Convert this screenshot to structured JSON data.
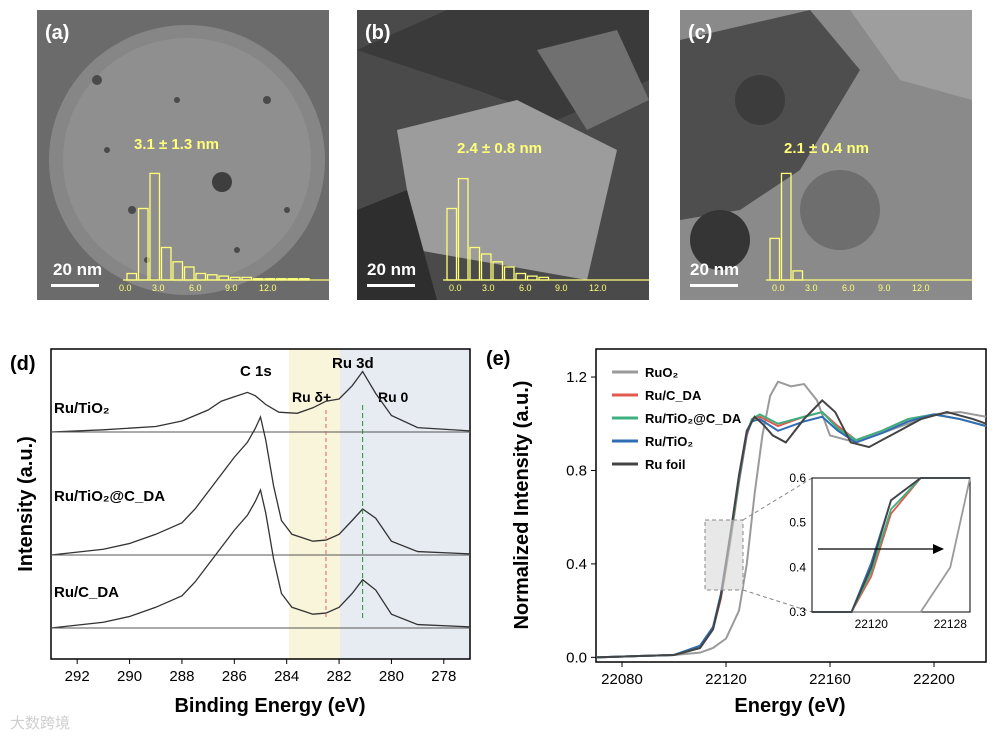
{
  "tem_panels": [
    {
      "label": "(a)",
      "measurement": "3.1 ± 1.3 nm",
      "scale": "20 nm",
      "hist_ticks": [
        "0.0",
        "3.0",
        "6.0",
        "9.0",
        "12.0"
      ],
      "hist_bins": [
        1,
        2,
        3,
        4,
        5,
        6,
        7,
        8,
        9,
        10,
        11,
        12,
        13,
        14,
        15,
        16,
        17,
        18,
        19,
        20
      ],
      "hist_values": [
        0.05,
        0.55,
        0.82,
        0.25,
        0.14,
        0.1,
        0.05,
        0.04,
        0.03,
        0.02,
        0.02,
        0.01,
        0.01,
        0.01,
        0.01,
        0.01,
        0.0,
        0.0,
        0.0,
        0.0
      ]
    },
    {
      "label": "(b)",
      "measurement": "2.4 ± 0.8 nm",
      "scale": "20 nm",
      "hist_ticks": [
        "0.0",
        "3.0",
        "6.0",
        "9.0",
        "12.0"
      ],
      "hist_bins": [
        1,
        2,
        3,
        4,
        5,
        6,
        7,
        8,
        9
      ],
      "hist_values": [
        0.55,
        0.78,
        0.25,
        0.2,
        0.14,
        0.1,
        0.05,
        0.03,
        0.02
      ]
    },
    {
      "label": "(c)",
      "measurement": "2.1 ± 0.4 nm",
      "scale": "20 nm",
      "hist_ticks": [
        "0.0",
        "3.0",
        "6.0",
        "9.0",
        "12.0"
      ],
      "hist_bins": [
        1,
        2,
        3
      ],
      "hist_values": [
        0.32,
        0.82,
        0.07
      ]
    }
  ],
  "chart_data": [
    {
      "type": "line",
      "panel_label": "(d)",
      "title": "",
      "xlabel": "Binding Energy (eV)",
      "ylabel": "Intensity (a.u.)",
      "xlim": [
        293,
        277
      ],
      "xticks": [
        292,
        290,
        288,
        286,
        284,
        282,
        280,
        278
      ],
      "annotations": [
        "C 1s",
        "Ru 3d",
        "Ru δ+",
        "Ru 0"
      ],
      "series": [
        {
          "name": "Ru/TiO2",
          "sample_label": "Ru/TiO₂",
          "x": [
            293,
            291,
            289,
            288,
            287,
            286.5,
            286,
            285.5,
            285.2,
            284.8,
            284.3,
            283.6,
            283,
            282.5,
            282,
            281.5,
            281.1,
            280.6,
            280,
            279,
            277
          ],
          "y": [
            0.0,
            0.02,
            0.05,
            0.1,
            0.2,
            0.28,
            0.32,
            0.36,
            0.33,
            0.25,
            0.18,
            0.17,
            0.22,
            0.28,
            0.3,
            0.42,
            0.55,
            0.35,
            0.15,
            0.04,
            0.01
          ]
        },
        {
          "name": "Ru/TiO2@CDA",
          "sample_label": "Ru/TiO₂@C_DA",
          "x": [
            293,
            291,
            290,
            289,
            288,
            287.5,
            287,
            286.5,
            286,
            285.5,
            285.2,
            285,
            284.8,
            284.5,
            284.2,
            283.8,
            283,
            282.5,
            282,
            281.5,
            281.1,
            280.6,
            280,
            279,
            277
          ],
          "y": [
            0.0,
            0.05,
            0.1,
            0.18,
            0.28,
            0.4,
            0.55,
            0.7,
            0.85,
            0.98,
            1.1,
            1.2,
            1.0,
            0.6,
            0.3,
            0.18,
            0.12,
            0.13,
            0.18,
            0.3,
            0.4,
            0.32,
            0.12,
            0.03,
            0.01
          ]
        },
        {
          "name": "Ru/CDA",
          "sample_label": "Ru/C_DA",
          "x": [
            293,
            291,
            290,
            289,
            288,
            287.5,
            287,
            286.5,
            286,
            285.5,
            285.2,
            285,
            284.8,
            284.5,
            284.2,
            283.8,
            283,
            282.5,
            282,
            281.5,
            281.1,
            280.6,
            280,
            279,
            277
          ],
          "y": [
            0.0,
            0.05,
            0.1,
            0.18,
            0.28,
            0.4,
            0.55,
            0.7,
            0.85,
            0.98,
            1.1,
            1.2,
            1.0,
            0.6,
            0.3,
            0.18,
            0.12,
            0.13,
            0.18,
            0.3,
            0.42,
            0.33,
            0.12,
            0.03,
            0.01
          ]
        }
      ]
    },
    {
      "type": "line",
      "panel_label": "(e)",
      "title": "",
      "xlabel": "Energy (eV)",
      "ylabel": "Normalized Intensity (a.u.)",
      "xlim": [
        22070,
        22220
      ],
      "ylim": [
        -0.02,
        1.32
      ],
      "xticks": [
        22080,
        22120,
        22160,
        22200
      ],
      "yticks": [
        0.0,
        0.4,
        0.8,
        1.2
      ],
      "series": [
        {
          "name": "RuO2",
          "legend_label": "RuO₂",
          "color": "#9a9a9a",
          "x": [
            22070,
            22100,
            22110,
            22115,
            22120,
            22125,
            22128,
            22131,
            22134,
            22137,
            22140,
            22145,
            22150,
            22155,
            22160,
            22170,
            22180,
            22190,
            22200,
            22210,
            22220
          ],
          "y": [
            0.0,
            0.01,
            0.02,
            0.04,
            0.08,
            0.2,
            0.4,
            0.7,
            0.95,
            1.12,
            1.18,
            1.16,
            1.17,
            1.1,
            0.95,
            0.92,
            0.96,
            1.0,
            1.04,
            1.05,
            1.03
          ]
        },
        {
          "name": "Ru/CDA",
          "legend_label": "Ru/C_DA",
          "color": "#e05a4f",
          "x": [
            22070,
            22100,
            22110,
            22115,
            22118,
            22120,
            22122,
            22125,
            22128,
            22130,
            22133,
            22140,
            22150,
            22157,
            22163,
            22170,
            22180,
            22190,
            22200,
            22210,
            22220
          ],
          "y": [
            0.0,
            0.01,
            0.04,
            0.12,
            0.25,
            0.38,
            0.52,
            0.75,
            0.95,
            1.02,
            1.03,
            0.99,
            1.03,
            1.05,
            0.99,
            0.93,
            0.97,
            1.02,
            1.04,
            1.02,
            0.99
          ]
        },
        {
          "name": "Ru/TiO2@CDA",
          "legend_label": "Ru/TiO₂@C_DA",
          "color": "#3db07f",
          "x": [
            22070,
            22100,
            22110,
            22115,
            22118,
            22120,
            22122,
            22125,
            22128,
            22130,
            22133,
            22140,
            22150,
            22157,
            22163,
            22170,
            22180,
            22190,
            22200,
            22210,
            22220
          ],
          "y": [
            0.0,
            0.01,
            0.04,
            0.12,
            0.26,
            0.39,
            0.53,
            0.76,
            0.96,
            1.02,
            1.04,
            1.0,
            1.03,
            1.05,
            0.98,
            0.93,
            0.97,
            1.02,
            1.04,
            1.02,
            0.99
          ]
        },
        {
          "name": "Ru/TiO2",
          "legend_label": "Ru/TiO₂",
          "color": "#2f6db5",
          "x": [
            22070,
            22100,
            22110,
            22115,
            22118,
            22120,
            22122,
            22125,
            22128,
            22130,
            22133,
            22140,
            22150,
            22157,
            22163,
            22170,
            22180,
            22190,
            22200,
            22210,
            22220
          ],
          "y": [
            0.0,
            0.01,
            0.05,
            0.13,
            0.27,
            0.41,
            0.55,
            0.77,
            0.96,
            1.01,
            1.02,
            0.97,
            1.01,
            1.03,
            0.97,
            0.92,
            0.96,
            1.01,
            1.04,
            1.02,
            0.99
          ]
        },
        {
          "name": "Ru foil",
          "legend_label": "Ru foil",
          "color": "#444444",
          "x": [
            22070,
            22100,
            22110,
            22115,
            22118,
            22120,
            22122,
            22125,
            22128,
            22131,
            22134,
            22138,
            22143,
            22150,
            22157,
            22162,
            22168,
            22175,
            22185,
            22195,
            22205,
            22215,
            22220
          ],
          "y": [
            0.0,
            0.01,
            0.04,
            0.12,
            0.26,
            0.4,
            0.55,
            0.78,
            0.97,
            1.03,
            1.0,
            0.95,
            0.92,
            1.02,
            1.1,
            1.05,
            0.92,
            0.9,
            0.96,
            1.02,
            1.05,
            1.02,
            1.0
          ]
        }
      ],
      "inset": {
        "xlim": [
          22114,
          22130
        ],
        "ylim": [
          0.3,
          0.6
        ],
        "xticks": [
          22120,
          22128
        ],
        "yticks": [
          0.3,
          0.4,
          0.5,
          0.6
        ]
      }
    }
  ],
  "watermark": "大数跨境"
}
